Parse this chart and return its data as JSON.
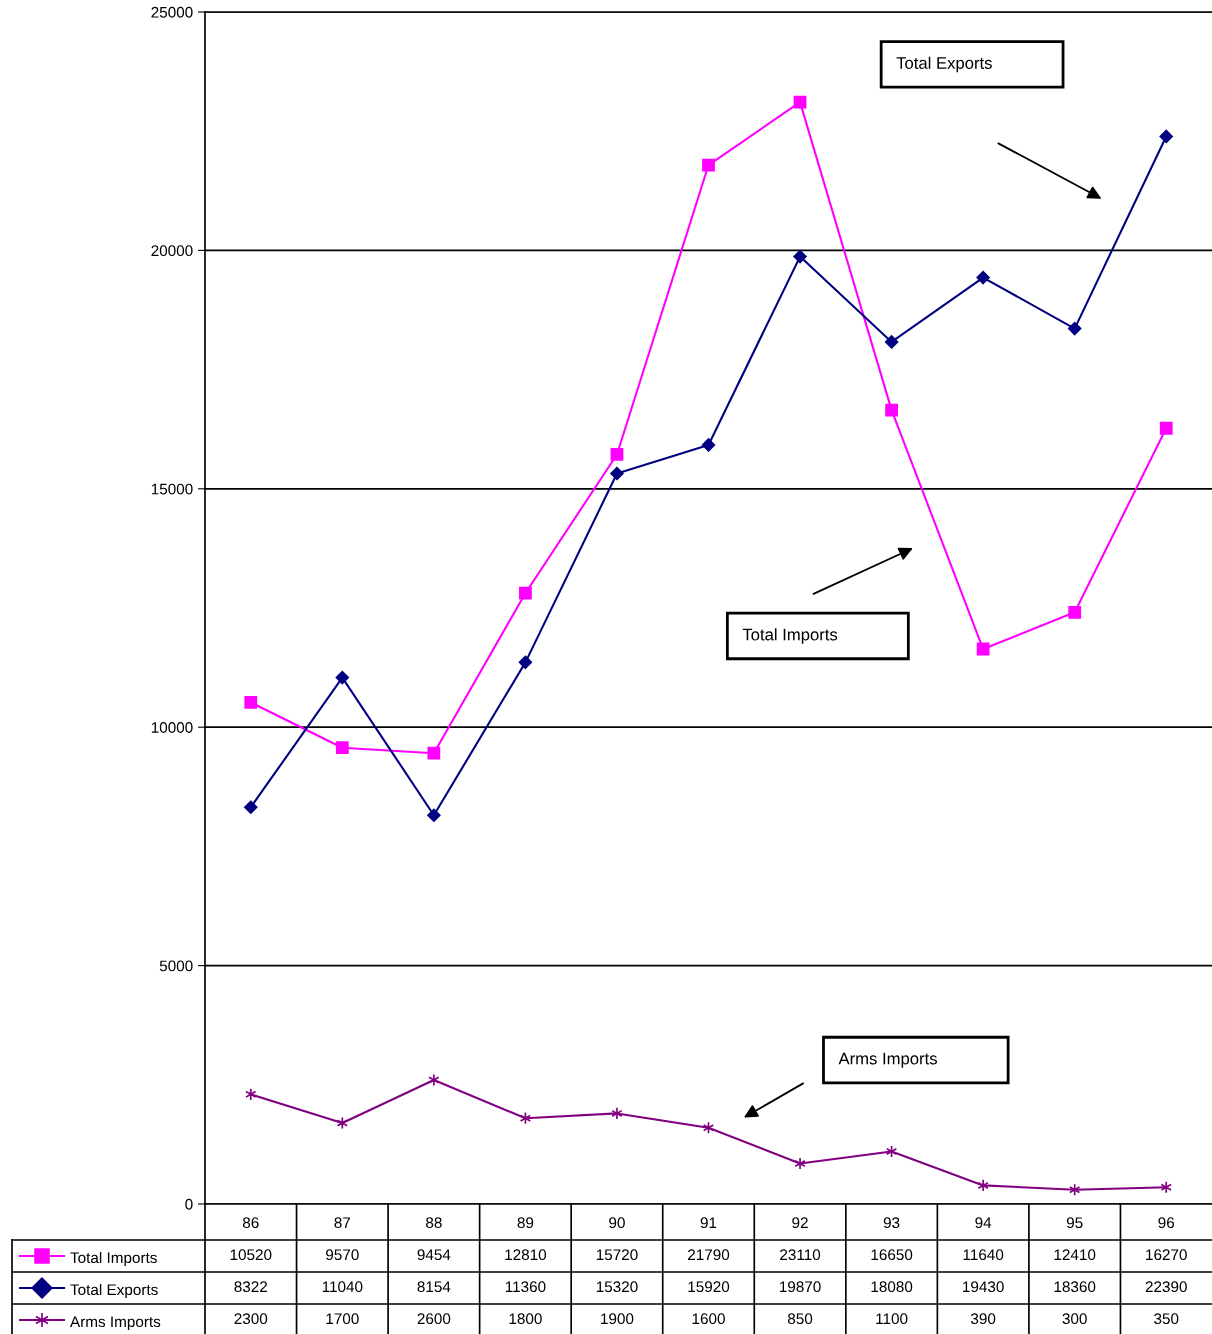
{
  "chart_data": {
    "type": "line",
    "categories": [
      "86",
      "87",
      "88",
      "89",
      "90",
      "91",
      "92",
      "93",
      "94",
      "95",
      "96"
    ],
    "series": [
      {
        "name": "Total Imports",
        "color": "#ff00ff",
        "marker": "square",
        "values": [
          10520,
          9570,
          9454,
          12810,
          15720,
          21790,
          23110,
          16650,
          11640,
          12410,
          16270
        ]
      },
      {
        "name": "Total Exports",
        "color": "#000080",
        "marker": "diamond",
        "values": [
          8322,
          11040,
          8154,
          11360,
          15320,
          15920,
          19870,
          18080,
          19430,
          18360,
          22390
        ]
      },
      {
        "name": "Arms Imports",
        "color": "#800080",
        "marker": "cross",
        "values": [
          2300,
          1700,
          2600,
          1800,
          1900,
          1600,
          850,
          1100,
          390,
          300,
          350
        ]
      }
    ],
    "ylim": [
      0,
      25000
    ],
    "yticks": [
      0,
      5000,
      10000,
      15000,
      20000,
      25000
    ],
    "grid": "y",
    "legend": "bottom",
    "data_labels": true,
    "annotations": [
      "Total Exports",
      "Total Imports",
      "Arms Imports"
    ]
  }
}
